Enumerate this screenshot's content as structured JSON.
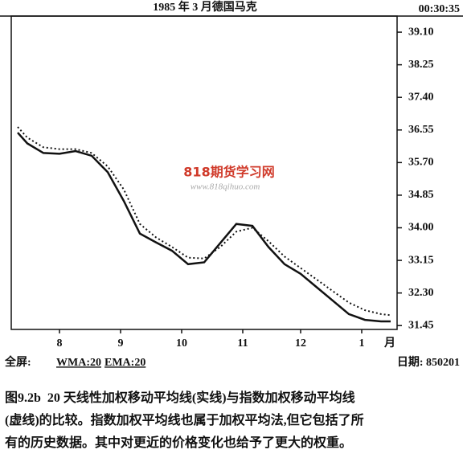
{
  "chart_data": {
    "type": "line",
    "title": "1985 年 3 月德国马克",
    "timestamp": "00:30:35",
    "x": [
      2,
      5,
      10,
      15,
      20,
      25,
      30,
      35,
      40,
      45,
      50,
      55,
      60,
      65,
      70,
      75,
      80,
      85,
      90,
      95,
      100,
      105,
      110,
      115,
      118
    ],
    "series": [
      {
        "name": "WMA:20",
        "color": "#111111",
        "style": "solid",
        "values": [
          36.48,
          36.2,
          35.95,
          35.93,
          36.0,
          35.88,
          35.45,
          34.7,
          33.85,
          33.62,
          33.4,
          33.05,
          33.1,
          33.6,
          34.1,
          34.05,
          33.5,
          33.05,
          32.8,
          32.45,
          32.1,
          31.75,
          31.6,
          31.56,
          31.56
        ]
      },
      {
        "name": "EMA:20",
        "color": "#111111",
        "style": "dotted",
        "values": [
          36.63,
          36.35,
          36.1,
          36.05,
          36.05,
          35.95,
          35.6,
          35.0,
          34.1,
          33.75,
          33.5,
          33.22,
          33.2,
          33.5,
          33.9,
          34.0,
          33.65,
          33.25,
          32.95,
          32.65,
          32.35,
          32.05,
          31.85,
          31.75,
          31.72
        ]
      }
    ],
    "xlim": [
      0,
      120
    ],
    "xticks": [
      {
        "value": 15,
        "label": "8"
      },
      {
        "value": 34,
        "label": "9"
      },
      {
        "value": 53,
        "label": "10"
      },
      {
        "value": 72,
        "label": "11"
      },
      {
        "value": 90,
        "label": "12"
      },
      {
        "value": 109,
        "label": "1"
      }
    ],
    "x_unit": "月",
    "ylim": [
      31.35,
      39.52
    ],
    "yticks": [
      31.45,
      {
        "value": 32.3,
        "label": "32.30"
      },
      33.15,
      {
        "value": 34.0,
        "label": "34.00"
      },
      34.85,
      {
        "value": 35.7,
        "label": "35.70"
      },
      36.55,
      {
        "value": 37.4,
        "label": "37.40"
      },
      38.25,
      {
        "value": 39.1,
        "label": "39.10"
      }
    ],
    "footer_label": "全屏:",
    "date_label": "日期: 850201",
    "watermark": "818期货学习网",
    "watermark_url": "www.818qihuo.com"
  },
  "caption": {
    "label": "图9.2b",
    "lines": [
      "20 天线性加权移动平均线(实线)与指数加权移动平均线",
      "(虚线)的比较。指数加权平均线也属于加权平均法,但它包括了所",
      "有的历史数据。其中对更近的价格变化也给予了更大的权重。"
    ]
  }
}
